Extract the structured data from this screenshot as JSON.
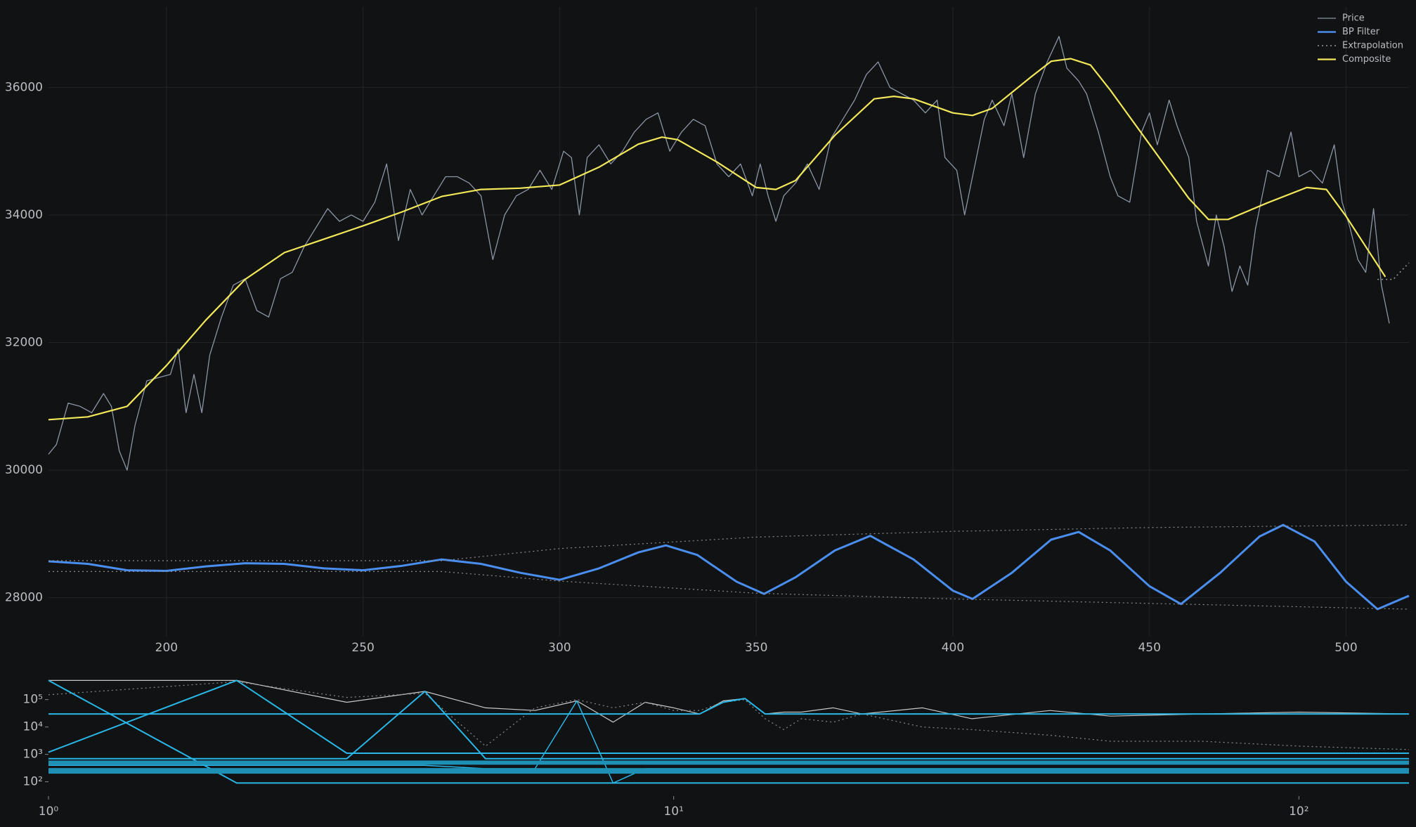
{
  "chart_data": [
    {
      "type": "line",
      "grid": true,
      "legend": "upper right",
      "xlim": [
        170,
        516
      ],
      "ylim": [
        27390,
        37260
      ],
      "xticks": [
        200,
        250,
        300,
        350,
        400,
        450,
        500
      ],
      "yticks": [
        28000,
        30000,
        32000,
        34000,
        36000
      ],
      "series": [
        {
          "name": "Price",
          "color": "#8c95a6",
          "style": "solid",
          "width": 1.3,
          "x": [
            170,
            172,
            175,
            178,
            181,
            184,
            186,
            188,
            190,
            192,
            195,
            198,
            201,
            203,
            205,
            207,
            209,
            211,
            214,
            217,
            220,
            223,
            226,
            229,
            232,
            235,
            238,
            241,
            244,
            247,
            250,
            253,
            256,
            259,
            262,
            265,
            268,
            271,
            274,
            277,
            280,
            283,
            286,
            289,
            292,
            295,
            298,
            301,
            303,
            305,
            307,
            310,
            313,
            316,
            319,
            322,
            325,
            328,
            331,
            334,
            337,
            340,
            343,
            346,
            349,
            351,
            353,
            355,
            357,
            360,
            363,
            366,
            369,
            372,
            375,
            378,
            381,
            384,
            387,
            390,
            393,
            396,
            398,
            401,
            403,
            405,
            408,
            410,
            413,
            415,
            418,
            421,
            424,
            427,
            429,
            432,
            434,
            437,
            440,
            442,
            445,
            448,
            450,
            452,
            455,
            457,
            460,
            462,
            465,
            467,
            469,
            471,
            473,
            475,
            477,
            480,
            483,
            486,
            488,
            491,
            494,
            497,
            499,
            501,
            503,
            505,
            507,
            509,
            511
          ],
          "values": [
            30250,
            30400,
            31050,
            31000,
            30900,
            31200,
            31000,
            30300,
            30000,
            30700,
            31400,
            31450,
            31500,
            31900,
            30900,
            31500,
            30900,
            31800,
            32400,
            32900,
            33000,
            32500,
            32400,
            33000,
            33100,
            33500,
            33800,
            34100,
            33900,
            34000,
            33900,
            34200,
            34800,
            33600,
            34400,
            34000,
            34300,
            34600,
            34600,
            34500,
            34300,
            33300,
            34000,
            34300,
            34400,
            34700,
            34400,
            35000,
            34900,
            34000,
            34900,
            35100,
            34800,
            35000,
            35300,
            35500,
            35600,
            35000,
            35300,
            35500,
            35400,
            34800,
            34600,
            34800,
            34300,
            34800,
            34300,
            33900,
            34300,
            34500,
            34800,
            34400,
            35200,
            35500,
            35800,
            36200,
            36400,
            36000,
            35900,
            35800,
            35600,
            35800,
            34900,
            34700,
            34000,
            34600,
            35500,
            35800,
            35400,
            35900,
            34900,
            35900,
            36400,
            36800,
            36300,
            36100,
            35900,
            35300,
            34600,
            34300,
            34200,
            35300,
            35600,
            35100,
            35800,
            35400,
            34900,
            33900,
            33200,
            34000,
            33500,
            32800,
            33200,
            32900,
            33800,
            34700,
            34600,
            35300,
            34600,
            34700,
            34500,
            35100,
            34200,
            33800,
            33300,
            33100,
            34100,
            32900,
            32300
          ]
        },
        {
          "name": "BP Filter",
          "color": "#4a8ef0",
          "style": "solid",
          "width": 3,
          "x": [
            170,
            180,
            190,
            200,
            210,
            220,
            230,
            240,
            250,
            260,
            270,
            280,
            290,
            300,
            310,
            320,
            327,
            335,
            345,
            352,
            360,
            370,
            379,
            390,
            400,
            405,
            415,
            425,
            432,
            440,
            450,
            458,
            468,
            478,
            484,
            492,
            500,
            508,
            516
          ],
          "values": [
            28570,
            28530,
            28430,
            28420,
            28490,
            28540,
            28530,
            28460,
            28430,
            28500,
            28600,
            28530,
            28390,
            28280,
            28460,
            28710,
            28820,
            28670,
            28250,
            28060,
            28320,
            28740,
            28970,
            28600,
            28110,
            27980,
            28390,
            28910,
            29030,
            28740,
            28180,
            27900,
            28390,
            28960,
            29140,
            28880,
            28250,
            27820,
            28030
          ]
        },
        {
          "name": "Extrapolation",
          "color": "#9a9a9a",
          "style": "dotted",
          "width": 1.5,
          "x": [
            508,
            512,
            516
          ],
          "values": [
            32990,
            32990,
            33250
          ]
        },
        {
          "color": "#8a8a8a",
          "style": "dotted",
          "width": 1.2,
          "x": [
            170,
            270,
            300,
            350,
            400,
            450,
            516
          ],
          "values": [
            28580,
            28580,
            28770,
            28950,
            29040,
            29100,
            29140
          ]
        },
        {
          "color": "#8a8a8a",
          "style": "dotted",
          "width": 1.2,
          "x": [
            170,
            270,
            300,
            350,
            400,
            450,
            516
          ],
          "values": [
            28410,
            28410,
            28260,
            28070,
            27980,
            27910,
            27820
          ]
        },
        {
          "name": "Composite",
          "color": "#f2e85a",
          "style": "solid",
          "width": 2.2,
          "x": [
            170,
            180,
            190,
            200,
            210,
            220,
            230,
            240,
            250,
            260,
            270,
            280,
            290,
            300,
            310,
            320,
            326,
            330,
            340,
            350,
            355,
            360,
            370,
            380,
            385,
            390,
            400,
            405,
            410,
            420,
            425,
            430,
            435,
            440,
            450,
            460,
            465,
            470,
            480,
            490,
            495,
            500,
            510
          ],
          "values": [
            30790,
            30835,
            31000,
            31640,
            32350,
            32990,
            33410,
            33620,
            33830,
            34050,
            34290,
            34400,
            34420,
            34470,
            34750,
            35110,
            35220,
            35180,
            34830,
            34430,
            34400,
            34540,
            35250,
            35820,
            35860,
            35820,
            35600,
            35560,
            35670,
            36170,
            36410,
            36450,
            36350,
            35960,
            35110,
            34260,
            33930,
            33930,
            34190,
            34430,
            34400,
            33980,
            33030
          ]
        }
      ]
    },
    {
      "type": "line",
      "grid": false,
      "log_x": true,
      "log_y": true,
      "xlim": [
        1,
        150
      ],
      "ylim": [
        30,
        650000
      ],
      "xticks": [
        {
          "value": 1,
          "label": "10⁰"
        },
        {
          "value": 10,
          "label": "10¹"
        },
        {
          "value": 100,
          "label": "10²"
        }
      ],
      "yticks": [
        {
          "value": 100,
          "label": "10²"
        },
        {
          "value": 1000,
          "label": "10³"
        },
        {
          "value": 10000,
          "label": "10⁴"
        },
        {
          "value": 100000,
          "label": "10⁵"
        }
      ],
      "x": [
        1,
        2,
        3,
        4,
        5,
        6,
        7,
        8,
        9,
        10,
        11,
        12,
        13,
        14,
        15,
        16,
        18,
        20,
        25,
        30,
        40,
        50,
        70,
        100,
        150
      ],
      "series": [
        {
          "color": "#c8c8c8",
          "style": "solid",
          "width": 1.2,
          "values": [
            500000,
            500000,
            80000,
            200000,
            50000,
            40000,
            90000,
            15000,
            80000,
            50000,
            30000,
            90000,
            110000,
            30000,
            35000,
            35000,
            50000,
            30000,
            50000,
            20000,
            40000,
            25000,
            30000,
            35000,
            30000
          ]
        },
        {
          "color": "#8a8a8a",
          "style": "dotted",
          "width": 1.2,
          "values": [
            150000,
            450000,
            120000,
            170000,
            2000,
            50000,
            100000,
            50000,
            80000,
            40000,
            40000,
            80000,
            100000,
            20000,
            8000,
            20000,
            15000,
            30000,
            10000,
            8000,
            5000,
            3000,
            3000,
            2000,
            1500
          ]
        },
        {
          "color": "#29b6e6",
          "style": "solid",
          "width": 2,
          "values": [
            500000,
            90,
            90,
            90,
            90,
            90,
            90,
            90,
            90,
            90,
            90,
            90,
            90,
            90,
            90,
            90,
            90,
            90,
            90,
            90,
            90,
            90,
            90,
            90,
            90
          ]
        },
        {
          "color": "#29b6e6",
          "style": "solid",
          "width": 2,
          "values": [
            1200,
            500000,
            1100,
            1100,
            1100,
            1100,
            1100,
            1100,
            1100,
            1100,
            1100,
            1100,
            1100,
            1100,
            1100,
            1100,
            1100,
            1100,
            1100,
            1100,
            1100,
            1100,
            1100,
            1100,
            1100
          ]
        },
        {
          "color": "#29b6e6",
          "style": "solid",
          "width": 2,
          "values": [
            700,
            700,
            700,
            200000,
            700,
            700,
            700,
            700,
            700,
            700,
            700,
            700,
            700,
            700,
            700,
            700,
            700,
            700,
            700,
            700,
            700,
            700,
            700,
            700,
            700
          ]
        },
        {
          "color": "#29b6e6",
          "style": "solid",
          "width": 2,
          "values": [
            30000,
            30000,
            30000,
            30000,
            30000,
            30000,
            30000,
            30000,
            30000,
            30000,
            30000,
            80000,
            110000,
            30000,
            30000,
            30000,
            30000,
            30000,
            30000,
            30000,
            30000,
            30000,
            30000,
            30000,
            30000
          ]
        },
        {
          "color": "#29b6e6",
          "style": "solid",
          "width": 1.5,
          "values": [
            400,
            400,
            400,
            400,
            300,
            300,
            90000,
            90,
            300,
            300,
            300,
            300,
            300,
            300,
            300,
            300,
            300,
            300,
            300,
            300,
            300,
            300,
            300,
            300,
            300
          ]
        },
        {
          "color": "#1e8fb5",
          "style": "solid",
          "width": 8,
          "values": [
            250,
            250,
            250,
            250,
            250,
            250,
            250,
            250,
            250,
            250,
            250,
            250,
            250,
            250,
            250,
            250,
            250,
            250,
            250,
            250,
            250,
            250,
            250,
            250,
            250
          ]
        },
        {
          "color": "#1e8fb5",
          "style": "solid",
          "width": 6,
          "values": [
            500,
            500,
            500,
            500,
            500,
            500,
            500,
            500,
            500,
            500,
            500,
            500,
            500,
            500,
            500,
            500,
            500,
            500,
            500,
            500,
            500,
            500,
            500,
            500,
            500
          ]
        }
      ]
    }
  ]
}
